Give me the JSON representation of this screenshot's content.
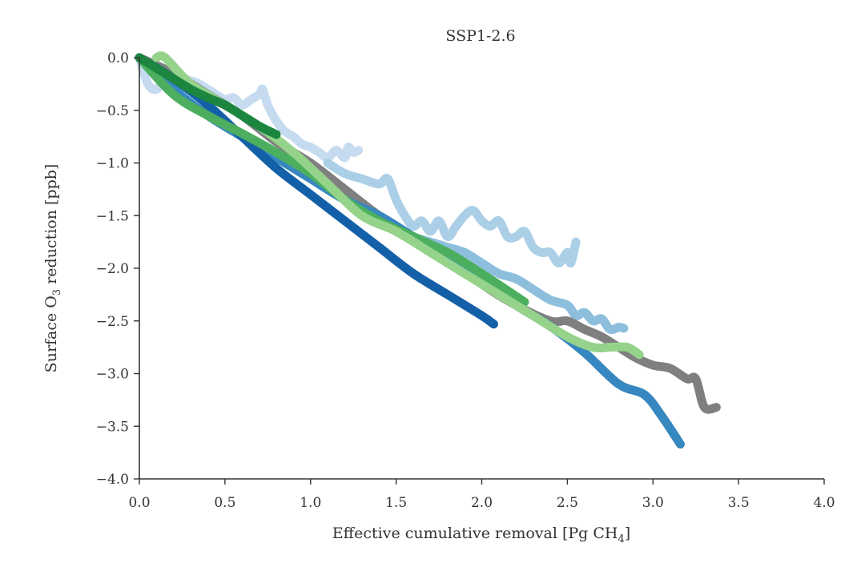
{
  "chart_data": {
    "type": "line",
    "title": "SSP1-2.6",
    "xlabel": "Effective cumulative removal [Pg CH",
    "xlabel_sub": "4",
    "xlabel_end": "]",
    "ylabel": "Surface O",
    "ylabel_sub": "3",
    "ylabel_end": " reduction [ppb]",
    "xlim": [
      0.0,
      4.0
    ],
    "ylim": [
      -4.0,
      0.0
    ],
    "xticks": [
      "0.0",
      "0.5",
      "1.0",
      "1.5",
      "2.0",
      "2.5",
      "3.0",
      "3.5",
      "4.0"
    ],
    "yticks": [
      "0.0",
      "−0.5",
      "−1.0",
      "−1.5",
      "−2.0",
      "−2.5",
      "−3.0",
      "−3.5",
      "−4.0"
    ],
    "xtick_values": [
      0.0,
      0.5,
      1.0,
      1.5,
      2.0,
      2.5,
      3.0,
      3.5,
      4.0
    ],
    "ytick_values": [
      0.0,
      -0.5,
      -1.0,
      -1.5,
      -2.0,
      -2.5,
      -3.0,
      -3.5,
      -4.0
    ],
    "grid": false,
    "legend": "none",
    "series": [
      {
        "name": "very-light-blue",
        "color": "#c6dbef",
        "x": [
          0.0,
          0.05,
          0.1,
          0.15,
          0.2,
          0.25,
          0.3,
          0.35,
          0.4,
          0.45,
          0.5,
          0.55,
          0.6,
          0.65,
          0.7,
          0.72,
          0.75,
          0.8,
          0.85,
          0.9,
          0.95,
          1.0,
          1.05,
          1.1,
          1.15,
          1.2,
          1.22,
          1.25,
          1.28
        ],
        "y": [
          0.0,
          -0.25,
          -0.3,
          -0.2,
          -0.25,
          -0.2,
          -0.22,
          -0.25,
          -0.3,
          -0.35,
          -0.4,
          -0.38,
          -0.45,
          -0.4,
          -0.35,
          -0.3,
          -0.45,
          -0.6,
          -0.7,
          -0.75,
          -0.82,
          -0.85,
          -0.9,
          -0.95,
          -0.88,
          -0.95,
          -0.85,
          -0.9,
          -0.88
        ]
      },
      {
        "name": "lightest-blue",
        "color": "#abcfe6",
        "x": [
          1.1,
          1.2,
          1.3,
          1.4,
          1.45,
          1.5,
          1.55,
          1.6,
          1.65,
          1.7,
          1.75,
          1.8,
          1.85,
          1.9,
          1.95,
          2.0,
          2.05,
          2.1,
          2.15,
          2.2,
          2.25,
          2.3,
          2.35,
          2.4,
          2.45,
          2.5,
          2.52,
          2.55
        ],
        "y": [
          -1.0,
          -1.1,
          -1.15,
          -1.2,
          -1.15,
          -1.35,
          -1.5,
          -1.6,
          -1.55,
          -1.65,
          -1.55,
          -1.7,
          -1.6,
          -1.5,
          -1.45,
          -1.55,
          -1.6,
          -1.55,
          -1.7,
          -1.7,
          -1.65,
          -1.8,
          -1.85,
          -1.85,
          -1.95,
          -1.85,
          -1.95,
          -1.75
        ]
      },
      {
        "name": "light-blue",
        "color": "#8dbfdd",
        "x": [
          0.9,
          1.0,
          1.1,
          1.2,
          1.3,
          1.4,
          1.5,
          1.6,
          1.7,
          1.8,
          1.9,
          2.0,
          2.1,
          2.2,
          2.3,
          2.4,
          2.5,
          2.55,
          2.6,
          2.65,
          2.7,
          2.75,
          2.8,
          2.83
        ],
        "y": [
          -0.9,
          -1.05,
          -1.2,
          -1.35,
          -1.45,
          -1.5,
          -1.6,
          -1.7,
          -1.75,
          -1.8,
          -1.85,
          -1.95,
          -2.05,
          -2.1,
          -2.2,
          -2.3,
          -2.35,
          -2.45,
          -2.42,
          -2.5,
          -2.48,
          -2.58,
          -2.56,
          -2.57
        ]
      },
      {
        "name": "gray",
        "color": "#7f7f7f",
        "x": [
          0.0,
          0.2,
          0.4,
          0.6,
          0.8,
          1.0,
          1.2,
          1.4,
          1.6,
          1.8,
          2.0,
          2.2,
          2.4,
          2.5,
          2.6,
          2.7,
          2.8,
          2.9,
          3.0,
          3.1,
          3.2,
          3.25,
          3.3,
          3.37
        ],
        "y": [
          0.0,
          -0.15,
          -0.35,
          -0.55,
          -0.8,
          -1.0,
          -1.25,
          -1.5,
          -1.7,
          -1.9,
          -2.15,
          -2.35,
          -2.5,
          -2.5,
          -2.58,
          -2.65,
          -2.75,
          -2.85,
          -2.92,
          -2.95,
          -3.05,
          -3.05,
          -3.32,
          -3.32
        ]
      },
      {
        "name": "mid-blue",
        "color": "#3787c0",
        "x": [
          0.0,
          0.2,
          0.4,
          0.6,
          0.8,
          1.0,
          1.2,
          1.4,
          1.6,
          1.8,
          2.0,
          2.2,
          2.4,
          2.6,
          2.8,
          2.95,
          3.05,
          3.16
        ],
        "y": [
          0.0,
          -0.3,
          -0.55,
          -0.75,
          -0.95,
          -1.15,
          -1.35,
          -1.5,
          -1.7,
          -1.9,
          -2.1,
          -2.35,
          -2.55,
          -2.8,
          -3.1,
          -3.2,
          -3.4,
          -3.67
        ]
      },
      {
        "name": "dark-blue",
        "color": "#1460a8",
        "x": [
          0.0,
          0.2,
          0.4,
          0.6,
          0.8,
          1.0,
          1.2,
          1.4,
          1.6,
          1.8,
          2.0,
          2.07
        ],
        "y": [
          0.0,
          -0.2,
          -0.45,
          -0.75,
          -1.05,
          -1.3,
          -1.55,
          -1.8,
          -2.05,
          -2.25,
          -2.45,
          -2.53
        ]
      },
      {
        "name": "medium-green",
        "color": "#4caf5f",
        "x": [
          0.0,
          0.2,
          0.4,
          0.6,
          0.8,
          1.0,
          1.2,
          1.4,
          1.6,
          1.8,
          2.0,
          2.25
        ],
        "y": [
          0.0,
          -0.35,
          -0.55,
          -0.72,
          -0.9,
          -1.1,
          -1.35,
          -1.55,
          -1.7,
          -1.85,
          -2.05,
          -2.32
        ]
      },
      {
        "name": "light-green",
        "color": "#95d38b",
        "x": [
          0.1,
          0.15,
          0.3,
          0.5,
          0.7,
          0.9,
          1.1,
          1.3,
          1.5,
          1.7,
          1.9,
          2.1,
          2.3,
          2.5,
          2.65,
          2.75,
          2.85,
          2.92
        ],
        "y": [
          0.0,
          0.0,
          -0.25,
          -0.45,
          -0.65,
          -0.9,
          -1.2,
          -1.5,
          -1.65,
          -1.85,
          -2.05,
          -2.25,
          -2.45,
          -2.65,
          -2.75,
          -2.75,
          -2.75,
          -2.82
        ]
      },
      {
        "name": "dark-green",
        "color": "#1c853f",
        "x": [
          0.0,
          0.1,
          0.2,
          0.3,
          0.4,
          0.5,
          0.6,
          0.7,
          0.8
        ],
        "y": [
          0.0,
          -0.1,
          -0.2,
          -0.3,
          -0.38,
          -0.45,
          -0.55,
          -0.65,
          -0.73
        ]
      }
    ]
  }
}
